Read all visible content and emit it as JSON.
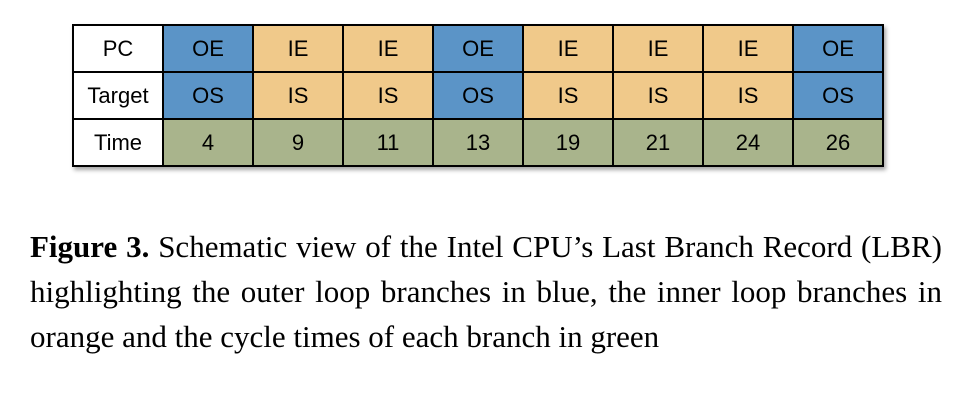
{
  "table": {
    "headers": [
      "PC",
      "Target",
      "Time"
    ],
    "rows": [
      [
        "OE",
        "IE",
        "IE",
        "OE",
        "IE",
        "IE",
        "IE",
        "OE"
      ],
      [
        "OS",
        "IS",
        "IS",
        "OS",
        "IS",
        "IS",
        "IS",
        "OS"
      ],
      [
        "4",
        "9",
        "11",
        "13",
        "19",
        "21",
        "24",
        "26"
      ]
    ],
    "colors": {
      "outer_loop": "#5b94c7",
      "inner_loop": "#f0c98a",
      "time": "#a9b48c"
    }
  },
  "caption": {
    "label": "Figure 3.",
    "text": "Schematic view of the Intel CPU’s Last Branch Record (LBR) highlighting the outer loop branches in blue, the inner loop branches in orange and the cycle times of each branch in green"
  }
}
